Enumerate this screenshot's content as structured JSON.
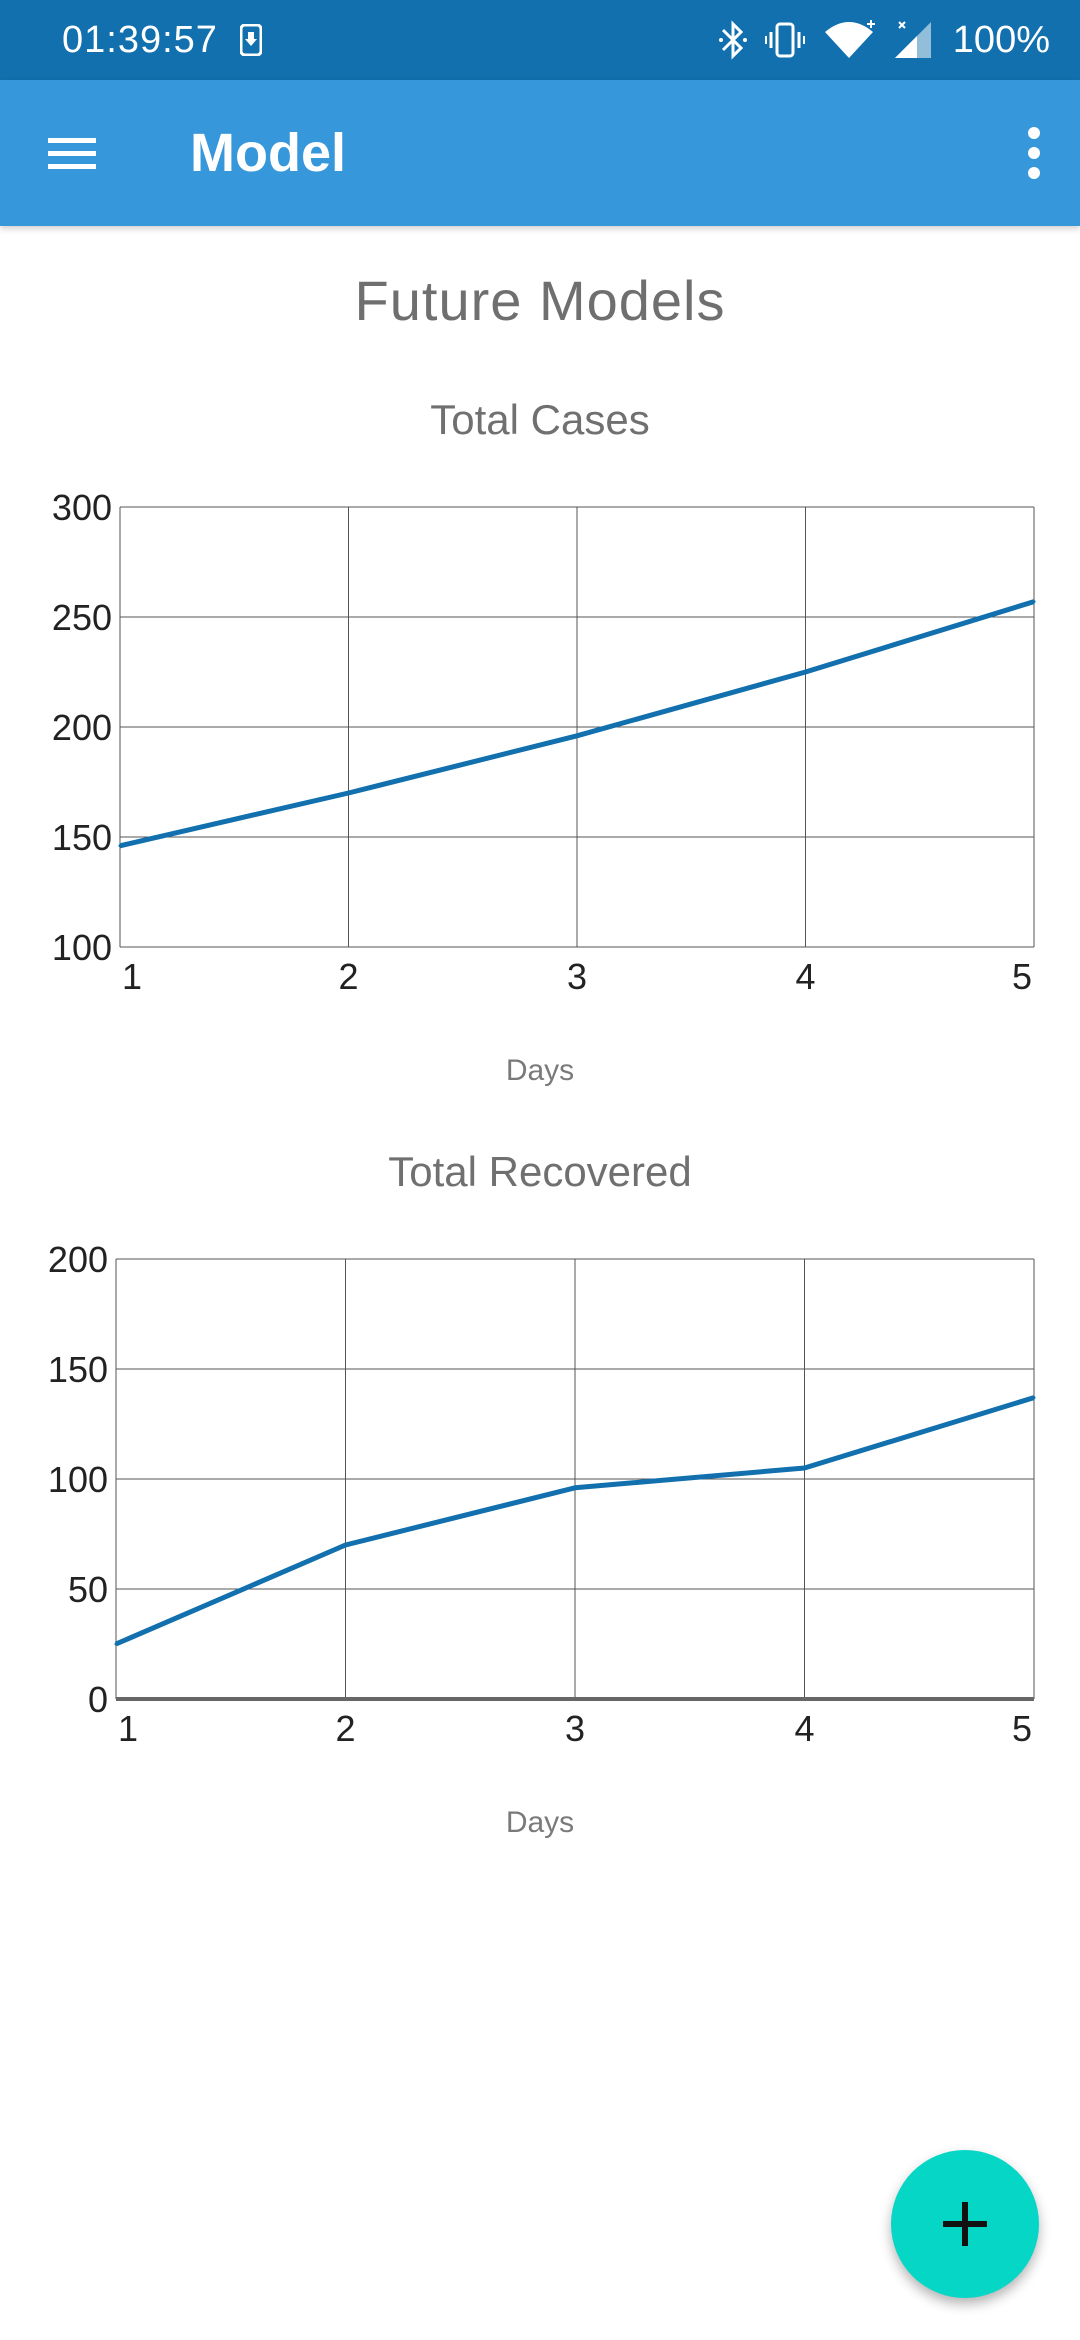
{
  "status_bar": {
    "time": "01:39:57",
    "battery": "100%",
    "icons": [
      "download-icon",
      "bluetooth-icon",
      "vibrate-icon",
      "wifi-icon",
      "signal-icon"
    ]
  },
  "app_bar": {
    "title": "Model",
    "menu_icon": "hamburger-menu-icon",
    "overflow_icon": "more-vert-icon",
    "background": "#3797DB"
  },
  "page": {
    "heading": "Future Models"
  },
  "fab": {
    "icon": "plus-icon",
    "color": "#05D6C6"
  },
  "chart_data": [
    {
      "type": "line",
      "title": "Total Cases",
      "xlabel": "Days",
      "ylabel": "",
      "x": [
        1,
        2,
        3,
        4,
        5
      ],
      "y_ticks": [
        100,
        150,
        200,
        250,
        300
      ],
      "ylim": [
        100,
        300
      ],
      "xlim": [
        1,
        5
      ],
      "grid": true,
      "line_color": "#1170AD",
      "series": [
        {
          "values": [
            146,
            170,
            196,
            225,
            257
          ]
        }
      ]
    },
    {
      "type": "line",
      "title": "Total Recovered",
      "xlabel": "Days",
      "ylabel": "",
      "x": [
        1,
        2,
        3,
        4,
        5
      ],
      "y_ticks": [
        0,
        50,
        100,
        150,
        200
      ],
      "ylim": [
        0,
        200
      ],
      "xlim": [
        1,
        5
      ],
      "grid": true,
      "line_color": "#1170AD",
      "series": [
        {
          "values": [
            25,
            70,
            96,
            105,
            137
          ]
        }
      ]
    }
  ]
}
